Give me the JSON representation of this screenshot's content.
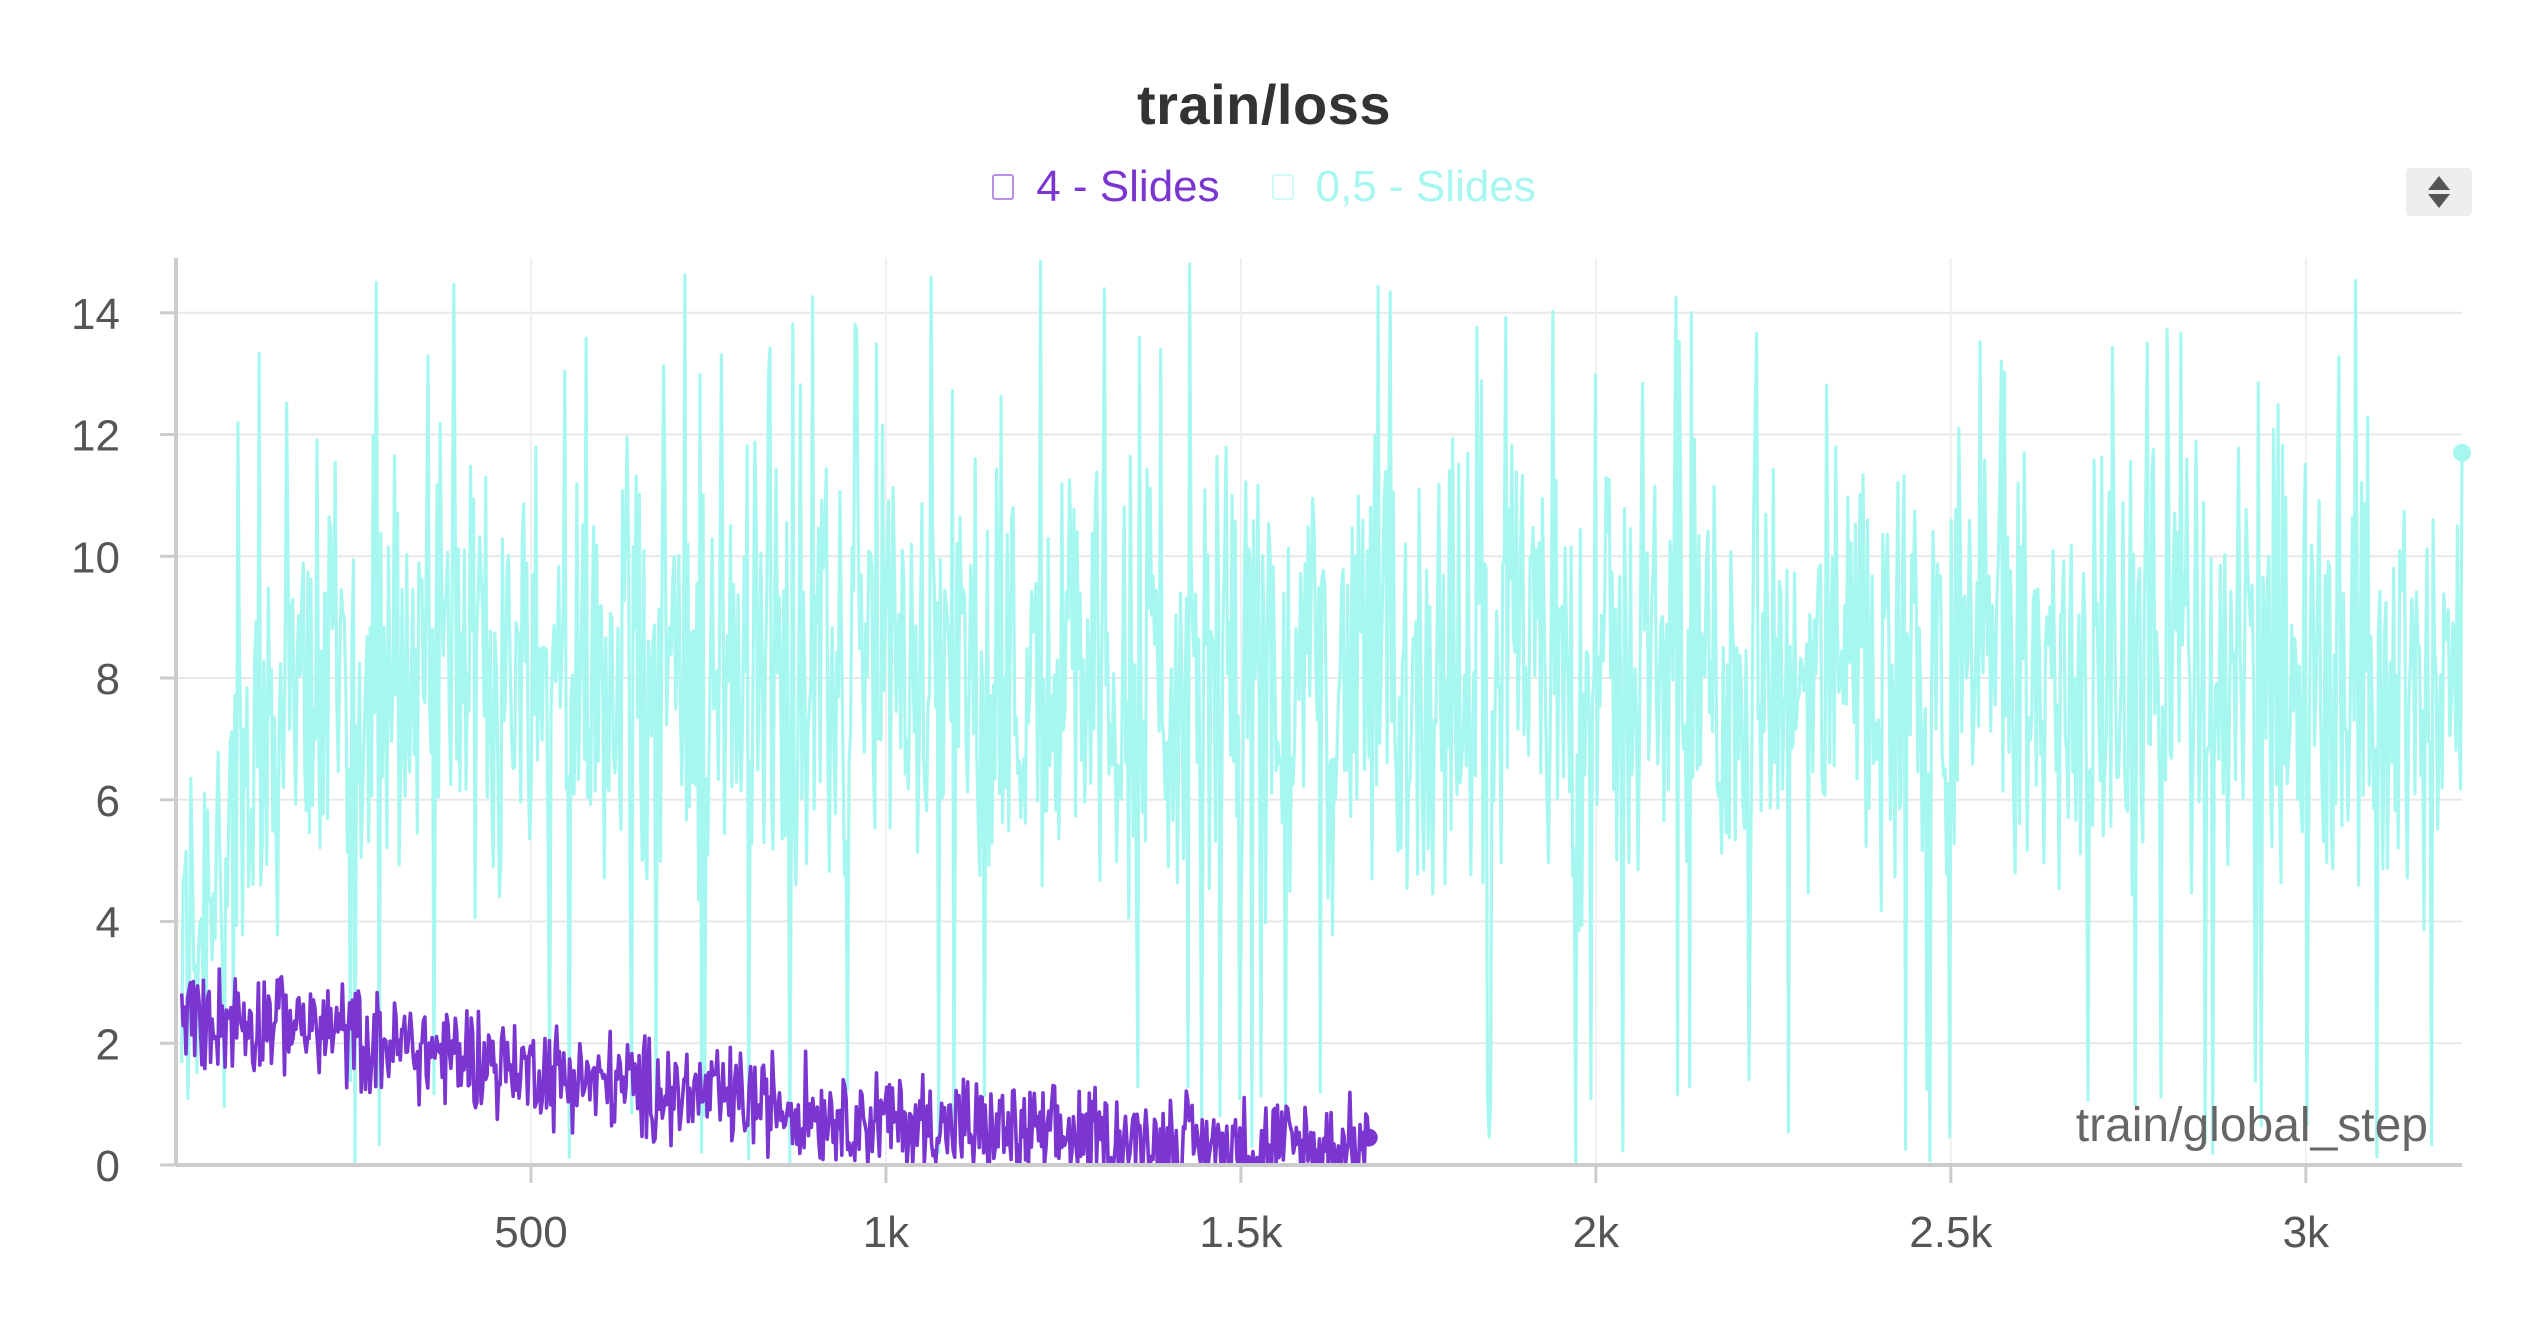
{
  "chart_data": {
    "type": "line",
    "title": "train/loss",
    "xlabel": "train/global_step",
    "ylabel": "",
    "xlim": [
      0,
      3220
    ],
    "ylim": [
      0,
      14.9
    ],
    "x_ticks": [
      500,
      1000,
      1500,
      2000,
      2500,
      3000
    ],
    "x_tick_labels": [
      "500",
      "1k",
      "1.5k",
      "2k",
      "2.5k",
      "3k"
    ],
    "y_ticks": [
      0,
      2,
      4,
      6,
      8,
      10,
      12,
      14
    ],
    "grid": true,
    "legend_position": "top-center",
    "series": [
      {
        "name": "4 - Slides",
        "color": "#7b35d0",
        "x_range": [
          8,
          1680
        ],
        "trend": [
          [
            8,
            2.45
          ],
          [
            150,
            2.4
          ],
          [
            250,
            2.1
          ],
          [
            400,
            1.8
          ],
          [
            550,
            1.45
          ],
          [
            700,
            1.2
          ],
          [
            900,
            0.9
          ],
          [
            1100,
            0.6
          ],
          [
            1300,
            0.42
          ],
          [
            1500,
            0.3
          ],
          [
            1680,
            0.25
          ]
        ],
        "noise": [
          0.22,
          0.55
        ],
        "last_value": 0.45
      },
      {
        "name": "0,5 - Slides",
        "color": "#a6f7f0",
        "x_range": [
          8,
          3220
        ],
        "trend": [
          [
            8,
            3.0
          ],
          [
            60,
            5.5
          ],
          [
            150,
            7.4
          ],
          [
            300,
            8.1
          ],
          [
            1000,
            8.0
          ],
          [
            2000,
            8.0
          ],
          [
            3220,
            8.0
          ]
        ],
        "noise": [
          0.9,
          2.4
        ],
        "spikes_max": 14.9,
        "last_value": 11.7
      }
    ]
  },
  "controls": {
    "sort_icon": "sort-arrows-icon"
  }
}
